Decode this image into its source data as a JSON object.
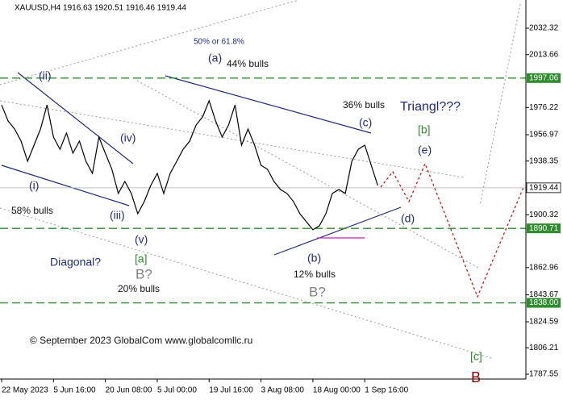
{
  "chart_data": {
    "type": "line",
    "title": "XAUUSD,H4  1916.63 1920.51 1916.46 1919.44",
    "categories": [
      "22 May 2023",
      null,
      null,
      null,
      null,
      null,
      null,
      null,
      "5 Jun 16:00",
      null,
      null,
      null,
      null,
      null,
      null,
      null,
      "20 Jun 08:00",
      null,
      null,
      null,
      null,
      null,
      null,
      null,
      "5 Jul 00:00",
      null,
      null,
      null,
      null,
      null,
      null,
      null,
      "19 Jul 16:00",
      null,
      null,
      null,
      null,
      null,
      null,
      null,
      "3 Aug 08:00",
      null,
      null,
      null,
      null,
      null,
      null,
      null,
      "18 Aug 00:00",
      null,
      null,
      null,
      null,
      null,
      null,
      null,
      "1 Sep 16:00",
      null,
      null
    ],
    "values": [
      1978.0,
      1966.7,
      1961.0,
      1952.5,
      1938.2,
      1949.6,
      1961.0,
      1978.0,
      1955.3,
      1946.7,
      1958.2,
      1943.9,
      1952.5,
      1938.2,
      1929.6,
      1955.3,
      1943.9,
      1932.5,
      1915.4,
      1923.9,
      1915.4,
      1901.1,
      1909.7,
      1921.1,
      1929.6,
      1915.4,
      1929.6,
      1938.2,
      1946.7,
      1952.5,
      1963.9,
      1969.6,
      1981.0,
      1966.7,
      1955.3,
      1963.9,
      1978.0,
      1949.6,
      1961.0,
      1949.6,
      1935.3,
      1932.5,
      1923.9,
      1918.2,
      1915.4,
      1909.7,
      1901.1,
      1895.4,
      1889.7,
      1892.5,
      1901.1,
      1915.4,
      1918.2,
      1915.4,
      1938.2,
      1946.7,
      1949.6,
      1935.3,
      1921.1
    ],
    "color": "#000000",
    "ylim": [
      1784.1,
      2052.3
    ],
    "yticks": [
      2032.32,
      2013.66,
      1976.22,
      1956.97,
      1938.35,
      1900.32,
      1862.96,
      1843.67,
      1824.59,
      1806.21,
      1787.55
    ],
    "levels": [
      1997.06,
      1890.71,
      {
        "value": 1838,
        "label": "1838.00"
      }
    ],
    "level_color": "#2e8b2e",
    "last_price": 1919.44,
    "annotations": [
      "50% or 61.8%",
      "(a)",
      "44% bulls",
      "(ii)",
      "36% bulls",
      "Triangl???",
      "(c)",
      "[b]",
      "(iv)",
      "(e)",
      "(i)",
      "58% bulls",
      "(iii)",
      "(d)",
      "(v)",
      "Diagonal?",
      "[a]",
      "(b)",
      "B?",
      "12% bulls",
      "20% bulls",
      "B?",
      "[c]",
      "© September 2023 GlobalCom www.globalcomllc.ru",
      "B"
    ]
  }
}
